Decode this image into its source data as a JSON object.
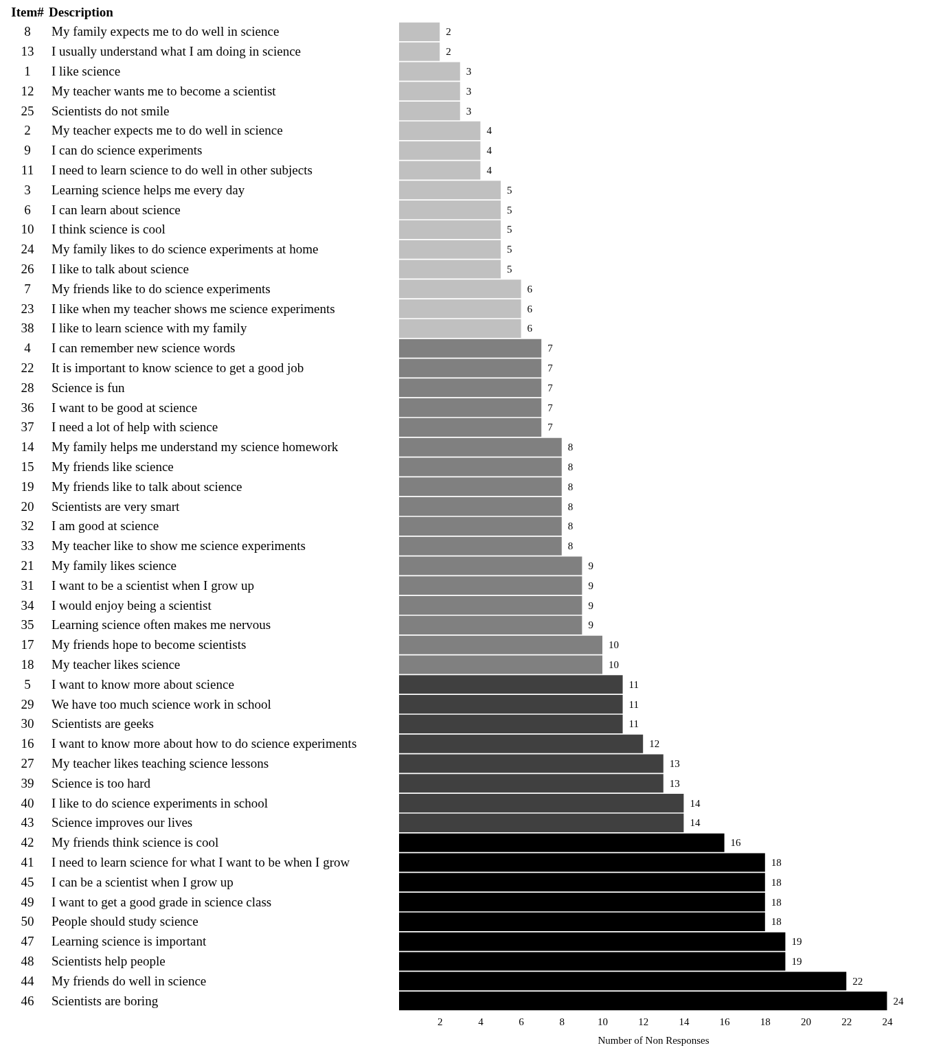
{
  "chart_data": {
    "type": "bar",
    "orientation": "horizontal",
    "xlabel": "Number of Non Responses",
    "data_labels": true,
    "xlim": [
      0,
      25
    ],
    "xticks": [
      2,
      4,
      6,
      8,
      10,
      12,
      14,
      16,
      18,
      20,
      22,
      24
    ],
    "categories": [
      "My family expects me to do well in science",
      "I usually understand what I am doing in science",
      "I like science",
      "My teacher wants me to become a scientist",
      "Scientists do not smile",
      "My teacher expects me to do well in science",
      "I can do science experiments",
      "I need to learn science to do well in other subjects",
      "Learning science helps me every day",
      "I can learn about science",
      "I think science is cool",
      "My family likes to do science experiments at home",
      "I like to talk about science",
      "My friends like to do science experiments",
      "I like when my teacher shows me science experiments",
      "I like to learn science with my family",
      "I can remember new science words",
      "It is important to know science to get a good job",
      "Science is fun",
      "I want to be good at science",
      "I need a lot of help with science",
      "My family helps me understand my science homework",
      "My friends like science",
      "My friends like to talk about science",
      "Scientists are very smart",
      "I am good at science",
      "My teacher like to show me science experiments",
      "My family likes science",
      "I want to be a scientist when I grow up",
      "I would enjoy being a scientist",
      "Learning science often makes me nervous",
      "My friends hope to become scientists",
      "My teacher likes science",
      "I want to know more about science",
      "We have too much science work in school",
      "Scientists are geeks",
      "I want to know more about how to do science experiments",
      "My teacher likes teaching science lessons",
      "Science is too hard",
      "I like to do science experiments in school",
      "Science improves our lives",
      "My friends think science is cool",
      "I need to learn science for what I want to be when I grow",
      "I can be a scientist when I grow up",
      "I want to get a good grade in science class",
      "People should study science",
      "Learning science is important",
      "Scientists help people",
      "My friends do well in science",
      "Scientists are boring"
    ],
    "values": [
      2,
      2,
      3,
      3,
      3,
      4,
      4,
      4,
      5,
      5,
      5,
      5,
      5,
      6,
      6,
      6,
      7,
      7,
      7,
      7,
      7,
      8,
      8,
      8,
      8,
      8,
      8,
      9,
      9,
      9,
      9,
      10,
      10,
      11,
      11,
      11,
      12,
      13,
      13,
      14,
      14,
      16,
      18,
      18,
      18,
      18,
      19,
      19,
      22,
      24
    ],
    "colors": [
      "#c0c0c0",
      "#c0c0c0",
      "#c0c0c0",
      "#c0c0c0",
      "#c0c0c0",
      "#c0c0c0",
      "#c0c0c0",
      "#c0c0c0",
      "#c0c0c0",
      "#c0c0c0",
      "#c0c0c0",
      "#c0c0c0",
      "#c0c0c0",
      "#c0c0c0",
      "#c0c0c0",
      "#c0c0c0",
      "#808080",
      "#808080",
      "#808080",
      "#808080",
      "#808080",
      "#808080",
      "#808080",
      "#808080",
      "#808080",
      "#808080",
      "#808080",
      "#808080",
      "#808080",
      "#808080",
      "#808080",
      "#808080",
      "#808080",
      "#404040",
      "#404040",
      "#404040",
      "#404040",
      "#404040",
      "#404040",
      "#404040",
      "#404040",
      "#000000",
      "#000000",
      "#000000",
      "#000000",
      "#000000",
      "#000000",
      "#000000",
      "#000000",
      "#000000"
    ],
    "annotations": [
      "Item#",
      "Description",
      "8",
      "13",
      "1",
      "12",
      "25",
      "2",
      "9",
      "11",
      "3",
      "6",
      "10",
      "24",
      "26",
      "7",
      "23",
      "38",
      "4",
      "22",
      "28",
      "36",
      "37",
      "14",
      "15",
      "19",
      "20",
      "32",
      "33",
      "21",
      "31",
      "34",
      "35",
      "17",
      "18",
      "5",
      "29",
      "30",
      "16",
      "27",
      "39",
      "40",
      "43",
      "42",
      "41",
      "45",
      "49",
      "50",
      "47",
      "48",
      "44",
      "46"
    ]
  }
}
